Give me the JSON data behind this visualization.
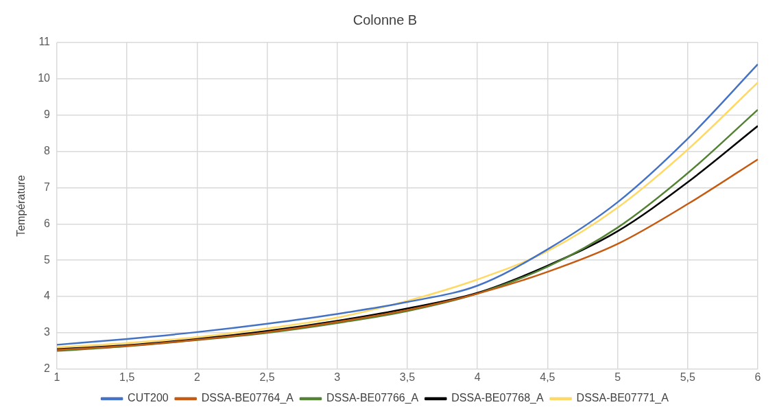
{
  "chart_data": {
    "type": "line",
    "title": "Colonne B",
    "ylabel": "Température",
    "x": [
      1,
      1.5,
      2,
      2.5,
      3,
      3.5,
      4,
      4.5,
      5,
      5.5,
      6
    ],
    "series": [
      {
        "name": "CUT200",
        "color": "#4472c4",
        "values": [
          2.67,
          2.83,
          3.02,
          3.25,
          3.52,
          3.85,
          4.3,
          5.3,
          6.6,
          8.35,
          10.4
        ]
      },
      {
        "name": "DSSA-BE07764_A",
        "color": "#c55a11",
        "values": [
          2.53,
          2.64,
          2.81,
          3.02,
          3.3,
          3.63,
          4.08,
          4.68,
          5.45,
          6.55,
          7.78
        ]
      },
      {
        "name": "DSSA-BE07766_A",
        "color": "#548235",
        "values": [
          2.5,
          2.63,
          2.8,
          3.0,
          3.27,
          3.6,
          4.08,
          4.82,
          5.9,
          7.4,
          9.15
        ]
      },
      {
        "name": "DSSA-BE07768_A",
        "color": "#000000",
        "values": [
          2.55,
          2.66,
          2.83,
          3.05,
          3.33,
          3.67,
          4.1,
          4.85,
          5.8,
          7.15,
          8.7
        ]
      },
      {
        "name": "DSSA-BE07771_A",
        "color": "#ffd966",
        "values": [
          2.6,
          2.72,
          2.88,
          3.12,
          3.42,
          3.88,
          4.47,
          5.25,
          6.45,
          8.05,
          9.9
        ]
      }
    ],
    "xlim": [
      1,
      6
    ],
    "xticks": [
      1,
      {
        "value": 1.5,
        "label": "1,5"
      },
      2,
      {
        "value": 2.5,
        "label": "2,5"
      },
      3,
      {
        "value": 3.5,
        "label": "3,5"
      },
      4,
      {
        "value": 4.5,
        "label": "4,5"
      },
      5,
      {
        "value": 5.5,
        "label": "5,5"
      },
      6
    ],
    "ylim": [
      2,
      11
    ],
    "yticks": [
      2,
      3,
      4,
      5,
      6,
      7,
      8,
      9,
      10,
      11
    ],
    "grid": true,
    "legend": "bottom",
    "marker": "none",
    "line_style": "solid"
  }
}
